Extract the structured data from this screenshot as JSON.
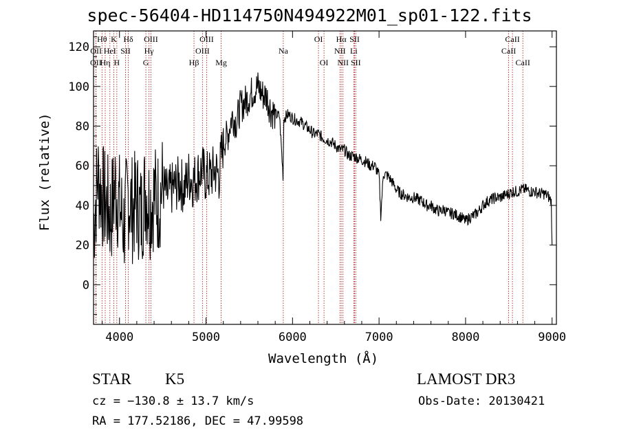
{
  "header": {
    "title": "spec-56404-HD114750N494922M01_sp01-122.fits"
  },
  "info": {
    "object_class": "STAR",
    "subclass": "K5",
    "survey": "LAMOST DR3",
    "cz": "cz = −130.8 ± 13.7 km/s",
    "obs_date": "Obs-Date: 20130421",
    "radec": "RA = 177.52186, DEC =  47.99598"
  },
  "chart_data": {
    "type": "line",
    "title": "spec-56404-HD114750N494922M01_sp01-122.fits",
    "xlabel": "Wavelength (Å)",
    "ylabel": "Flux (relative)",
    "xlim": [
      3700,
      9050
    ],
    "ylim": [
      -20,
      128
    ],
    "xticks": [
      4000,
      5000,
      6000,
      7000,
      8000,
      9000
    ],
    "yticks": [
      0,
      20,
      40,
      60,
      80,
      100,
      120
    ],
    "series": [
      {
        "name": "spectrum",
        "x": [
          3700,
          3750,
          3800,
          3850,
          3900,
          3950,
          4000,
          4050,
          4100,
          4150,
          4200,
          4250,
          4300,
          4350,
          4400,
          4450,
          4500,
          4550,
          4600,
          4650,
          4700,
          4750,
          4800,
          4850,
          4900,
          4950,
          5000,
          5050,
          5100,
          5150,
          5200,
          5250,
          5300,
          5350,
          5400,
          5450,
          5500,
          5550,
          5600,
          5650,
          5700,
          5750,
          5800,
          5850,
          5890,
          5900,
          5950,
          6000,
          6050,
          6100,
          6150,
          6200,
          6250,
          6300,
          6350,
          6400,
          6450,
          6500,
          6550,
          6600,
          6650,
          6700,
          6750,
          6800,
          6850,
          6900,
          6950,
          7000,
          7020,
          7050,
          7100,
          7150,
          7200,
          7250,
          7300,
          7350,
          7400,
          7450,
          7500,
          7550,
          7600,
          7650,
          7700,
          7750,
          7800,
          7850,
          7900,
          7950,
          8000,
          8050,
          8100,
          8150,
          8200,
          8250,
          8300,
          8350,
          8400,
          8450,
          8500,
          8550,
          8600,
          8650,
          8700,
          8750,
          8800,
          8850,
          8900,
          8950,
          8990,
          9000
        ],
        "y": [
          30,
          55,
          45,
          40,
          35,
          50,
          40,
          30,
          45,
          38,
          42,
          35,
          48,
          40,
          45,
          42,
          50,
          45,
          48,
          50,
          52,
          48,
          55,
          52,
          55,
          58,
          54,
          55,
          58,
          55,
          72,
          75,
          85,
          82,
          90,
          92,
          95,
          98,
          100,
          96,
          95,
          88,
          86,
          85,
          55,
          84,
          86,
          84,
          83,
          82,
          80,
          78,
          76,
          76,
          74,
          73,
          72,
          70,
          68,
          68,
          65,
          65,
          64,
          63,
          62,
          60,
          60,
          55,
          35,
          56,
          55,
          52,
          48,
          46,
          45,
          44,
          44,
          43,
          42,
          40,
          40,
          38,
          37,
          38,
          36,
          36,
          35,
          34,
          32,
          34,
          35,
          37,
          40,
          42,
          43,
          44,
          44,
          45,
          46,
          47,
          47,
          48,
          48,
          47,
          47,
          46,
          46,
          45,
          42,
          20
        ]
      }
    ],
    "lines": [
      {
        "label": "Hθ",
        "x": 3798,
        "row": 1
      },
      {
        "label": "OII",
        "x": 3727,
        "row": 3
      },
      {
        "label": "OII",
        "x": 3729,
        "row": 2
      },
      {
        "label": "Hη",
        "x": 3835,
        "row": 3
      },
      {
        "label": "K",
        "x": 3934,
        "row": 1
      },
      {
        "label": "HeI",
        "x": 3889,
        "row": 2
      },
      {
        "label": "H",
        "x": 3969,
        "row": 3
      },
      {
        "label": "SII",
        "x": 4070,
        "row": 2
      },
      {
        "label": "Hδ",
        "x": 4102,
        "row": 1
      },
      {
        "label": "OIII",
        "x": 4363,
        "row": 1
      },
      {
        "label": "Hγ",
        "x": 4341,
        "row": 2
      },
      {
        "label": "G",
        "x": 4305,
        "row": 3
      },
      {
        "label": "Hβ",
        "x": 4861,
        "row": 3
      },
      {
        "label": "OIII",
        "x": 5007,
        "row": 1
      },
      {
        "label": "OIII",
        "x": 4959,
        "row": 2
      },
      {
        "label": "Mg",
        "x": 5175,
        "row": 3
      },
      {
        "label": "Na",
        "x": 5893,
        "row": 2
      },
      {
        "label": "OI",
        "x": 6300,
        "row": 1
      },
      {
        "label": "OI",
        "x": 6364,
        "row": 3
      },
      {
        "label": "Hα",
        "x": 6563,
        "row": 1
      },
      {
        "label": "NII",
        "x": 6548,
        "row": 2
      },
      {
        "label": "NII",
        "x": 6583,
        "row": 3
      },
      {
        "label": "SII",
        "x": 6717,
        "row": 1
      },
      {
        "label": "Li",
        "x": 6708,
        "row": 2
      },
      {
        "label": "SII",
        "x": 6731,
        "row": 3
      },
      {
        "label": "CaII",
        "x": 8542,
        "row": 1
      },
      {
        "label": "CaII",
        "x": 8498,
        "row": 2
      },
      {
        "label": "CaII",
        "x": 8662,
        "row": 3
      }
    ]
  }
}
